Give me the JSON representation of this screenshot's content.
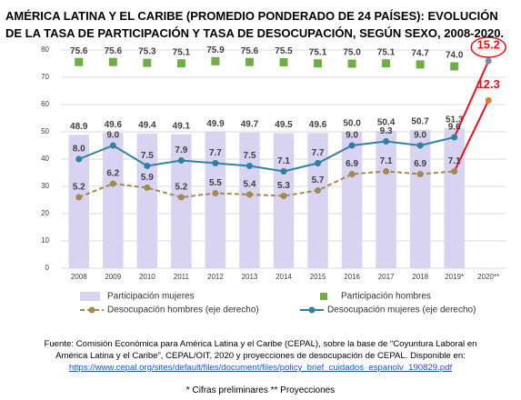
{
  "chart_data": {
    "type": "bar-line-combo",
    "title": "AMÉRICA LATINA Y EL CARIBE (PROMEDIO PONDERADO DE 24 PAÍSES): EVOLUCIÓN DE LA TASA DE PARTICIPACIÓN  Y TASA DE DESOCUPACIÓN, SEGÚN SEXO, 2008-2020.",
    "categories": [
      "2008",
      "2009",
      "2010",
      "2011",
      "2012",
      "2013",
      "2014",
      "2015",
      "2016",
      "2017",
      "2018",
      "2019*",
      "2020**"
    ],
    "ylim": [
      0,
      80
    ],
    "yticks": [
      0,
      10,
      20,
      30,
      40,
      50,
      60,
      70,
      80
    ],
    "y2lim": [
      0,
      16
    ],
    "grid": true,
    "projection_color": "#e8101c",
    "series": [
      {
        "name": "Participación mujeres",
        "kind": "bar",
        "color": "#d9d3f2",
        "values": [
          48.9,
          49.6,
          49.4,
          49.1,
          49.9,
          49.7,
          49.5,
          49.6,
          50.0,
          50.4,
          50.7,
          51.3,
          null
        ],
        "value_labels": [
          "48.9",
          "49.6",
          "49.4",
          "49.1",
          "49.9",
          "49.7",
          "49.5",
          "49.6",
          "50.0",
          "50.4",
          "50.7",
          "51.3",
          null
        ]
      },
      {
        "name": "Participación hombres",
        "kind": "square",
        "color": "#70ad47",
        "values": [
          75.6,
          75.6,
          75.3,
          75.1,
          75.9,
          75.6,
          75.5,
          75.1,
          75.0,
          75.1,
          74.7,
          74.0,
          null
        ],
        "value_labels": [
          "75.6",
          "75.6",
          "75.3",
          "75.1",
          "75.9",
          "75.6",
          "75.5",
          "75.1",
          "75.0",
          "75.1",
          "74.7",
          "74.0",
          null
        ]
      },
      {
        "name": "Desocupación hombres (eje derecho)",
        "kind": "dashed-line",
        "axis": "y2",
        "color": "#a08a4f",
        "values": [
          5.2,
          6.2,
          5.9,
          5.2,
          5.5,
          5.4,
          5.3,
          5.7,
          6.9,
          7.1,
          6.9,
          7.1,
          12.3
        ],
        "value_labels": [
          "5.2",
          "6.2",
          "5.9",
          "5.2",
          "5.5",
          "5.4",
          "5.3",
          "5.7",
          "6.9",
          "7.1",
          "6.9",
          "7.1",
          "12.3"
        ]
      },
      {
        "name": "Desocupación mujeres (eje derecho)",
        "kind": "line",
        "axis": "y2",
        "color": "#2f819f",
        "values": [
          8.0,
          9.0,
          7.5,
          7.9,
          7.7,
          7.5,
          7.1,
          7.7,
          9.0,
          9.3,
          9.0,
          9.6,
          15.2
        ],
        "value_labels": [
          "8.0",
          "9.0",
          "7.5",
          "7.9",
          "7.7",
          "7.5",
          "7.1",
          "7.7",
          "9.0",
          "9.3",
          "9.0",
          "9.6",
          "15.2"
        ]
      }
    ],
    "source": [
      "Fuente: Comisión Económica para América Latina y el Caribe (CEPAL), sobre la base de “Coyuntura Laboral en",
      "América Latina y el Caribe”, CEPAL/OIT, 2020 y proyecciones de desocupación de CEPAL. Disponible en:",
      "https://www.cepal.org/sites/default/files/document/files/policy_brief_cuidados_espanolv_190829.pdf"
    ],
    "notes": "* Cifras preliminares ** Proyecciones"
  }
}
